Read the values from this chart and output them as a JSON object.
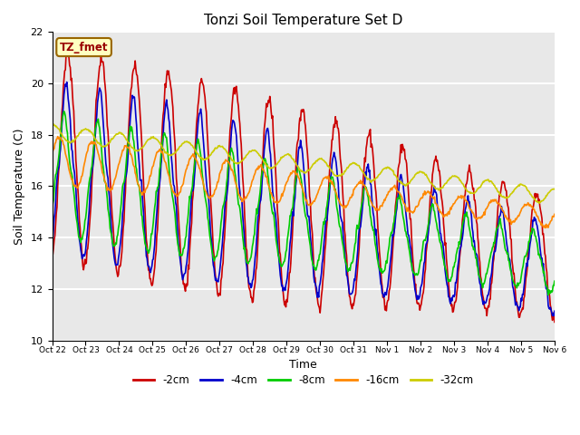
{
  "title": "Tonzi Soil Temperature Set D",
  "xlabel": "Time",
  "ylabel": "Soil Temperature (C)",
  "ylim": [
    10,
    22
  ],
  "annotation": "TZ_fmet",
  "series_labels": [
    "-2cm",
    "-4cm",
    "-8cm",
    "-16cm",
    "-32cm"
  ],
  "series_colors": [
    "#cc0000",
    "#0000cc",
    "#00cc00",
    "#ff8800",
    "#cccc00"
  ],
  "series_linewidths": [
    1.2,
    1.2,
    1.2,
    1.2,
    1.2
  ],
  "bg_color": "#e8e8e8",
  "fig_color": "#ffffff",
  "xtick_labels": [
    "Oct 22",
    "Oct 23",
    "Oct 24",
    "Oct 25",
    "Oct 26",
    "Oct 27",
    "Oct 28",
    "Oct 29",
    "Oct 30",
    "Oct 31",
    "Nov 1",
    "Nov 2",
    "Nov 3",
    "Nov 4",
    "Nov 5",
    "Nov 6"
  ],
  "n_days": 15,
  "points_per_day": 48,
  "yticks": [
    10,
    12,
    14,
    16,
    18,
    20,
    22
  ]
}
